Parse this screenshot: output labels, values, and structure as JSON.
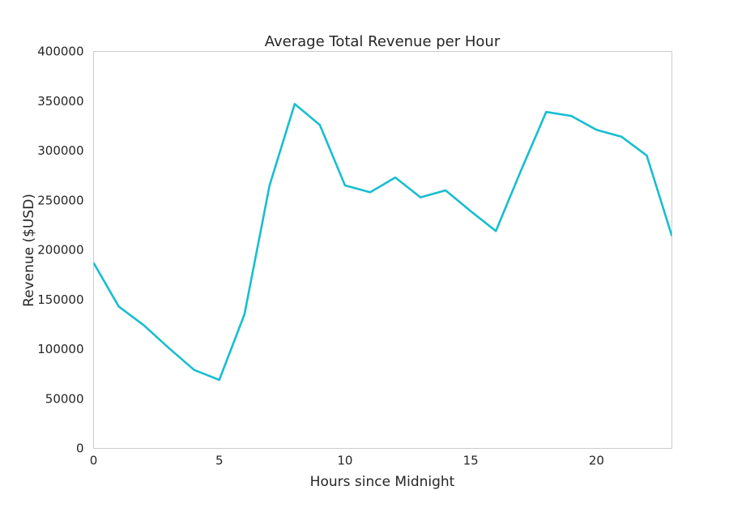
{
  "chart_data": {
    "type": "line",
    "title": "Average Total Revenue per Hour",
    "xlabel": "Hours since Midnight",
    "ylabel": "Revenue ($USD)",
    "xlim": [
      0,
      23
    ],
    "ylim": [
      0,
      400000
    ],
    "xticks": [
      0,
      5,
      10,
      15,
      20
    ],
    "yticks": [
      0,
      50000,
      100000,
      150000,
      200000,
      250000,
      300000,
      350000,
      400000
    ],
    "xtick_labels": [
      "0",
      "5",
      "10",
      "15",
      "20"
    ],
    "ytick_labels": [
      "0",
      "50000",
      "100000",
      "150000",
      "200000",
      "250000",
      "300000",
      "350000",
      "400000"
    ],
    "grid": false,
    "series": [
      {
        "color": "#17becf",
        "x": [
          0,
          1,
          2,
          3,
          4,
          5,
          6,
          7,
          8,
          9,
          10,
          11,
          12,
          13,
          14,
          15,
          16,
          17,
          18,
          19,
          20,
          21,
          22,
          23
        ],
        "y": [
          187000,
          143000,
          124000,
          101000,
          79000,
          69000,
          135000,
          265000,
          347000,
          326000,
          265000,
          258000,
          273000,
          253000,
          260000,
          239000,
          219000,
          280000,
          339000,
          335000,
          321000,
          314000,
          295000,
          214000
        ]
      }
    ]
  }
}
